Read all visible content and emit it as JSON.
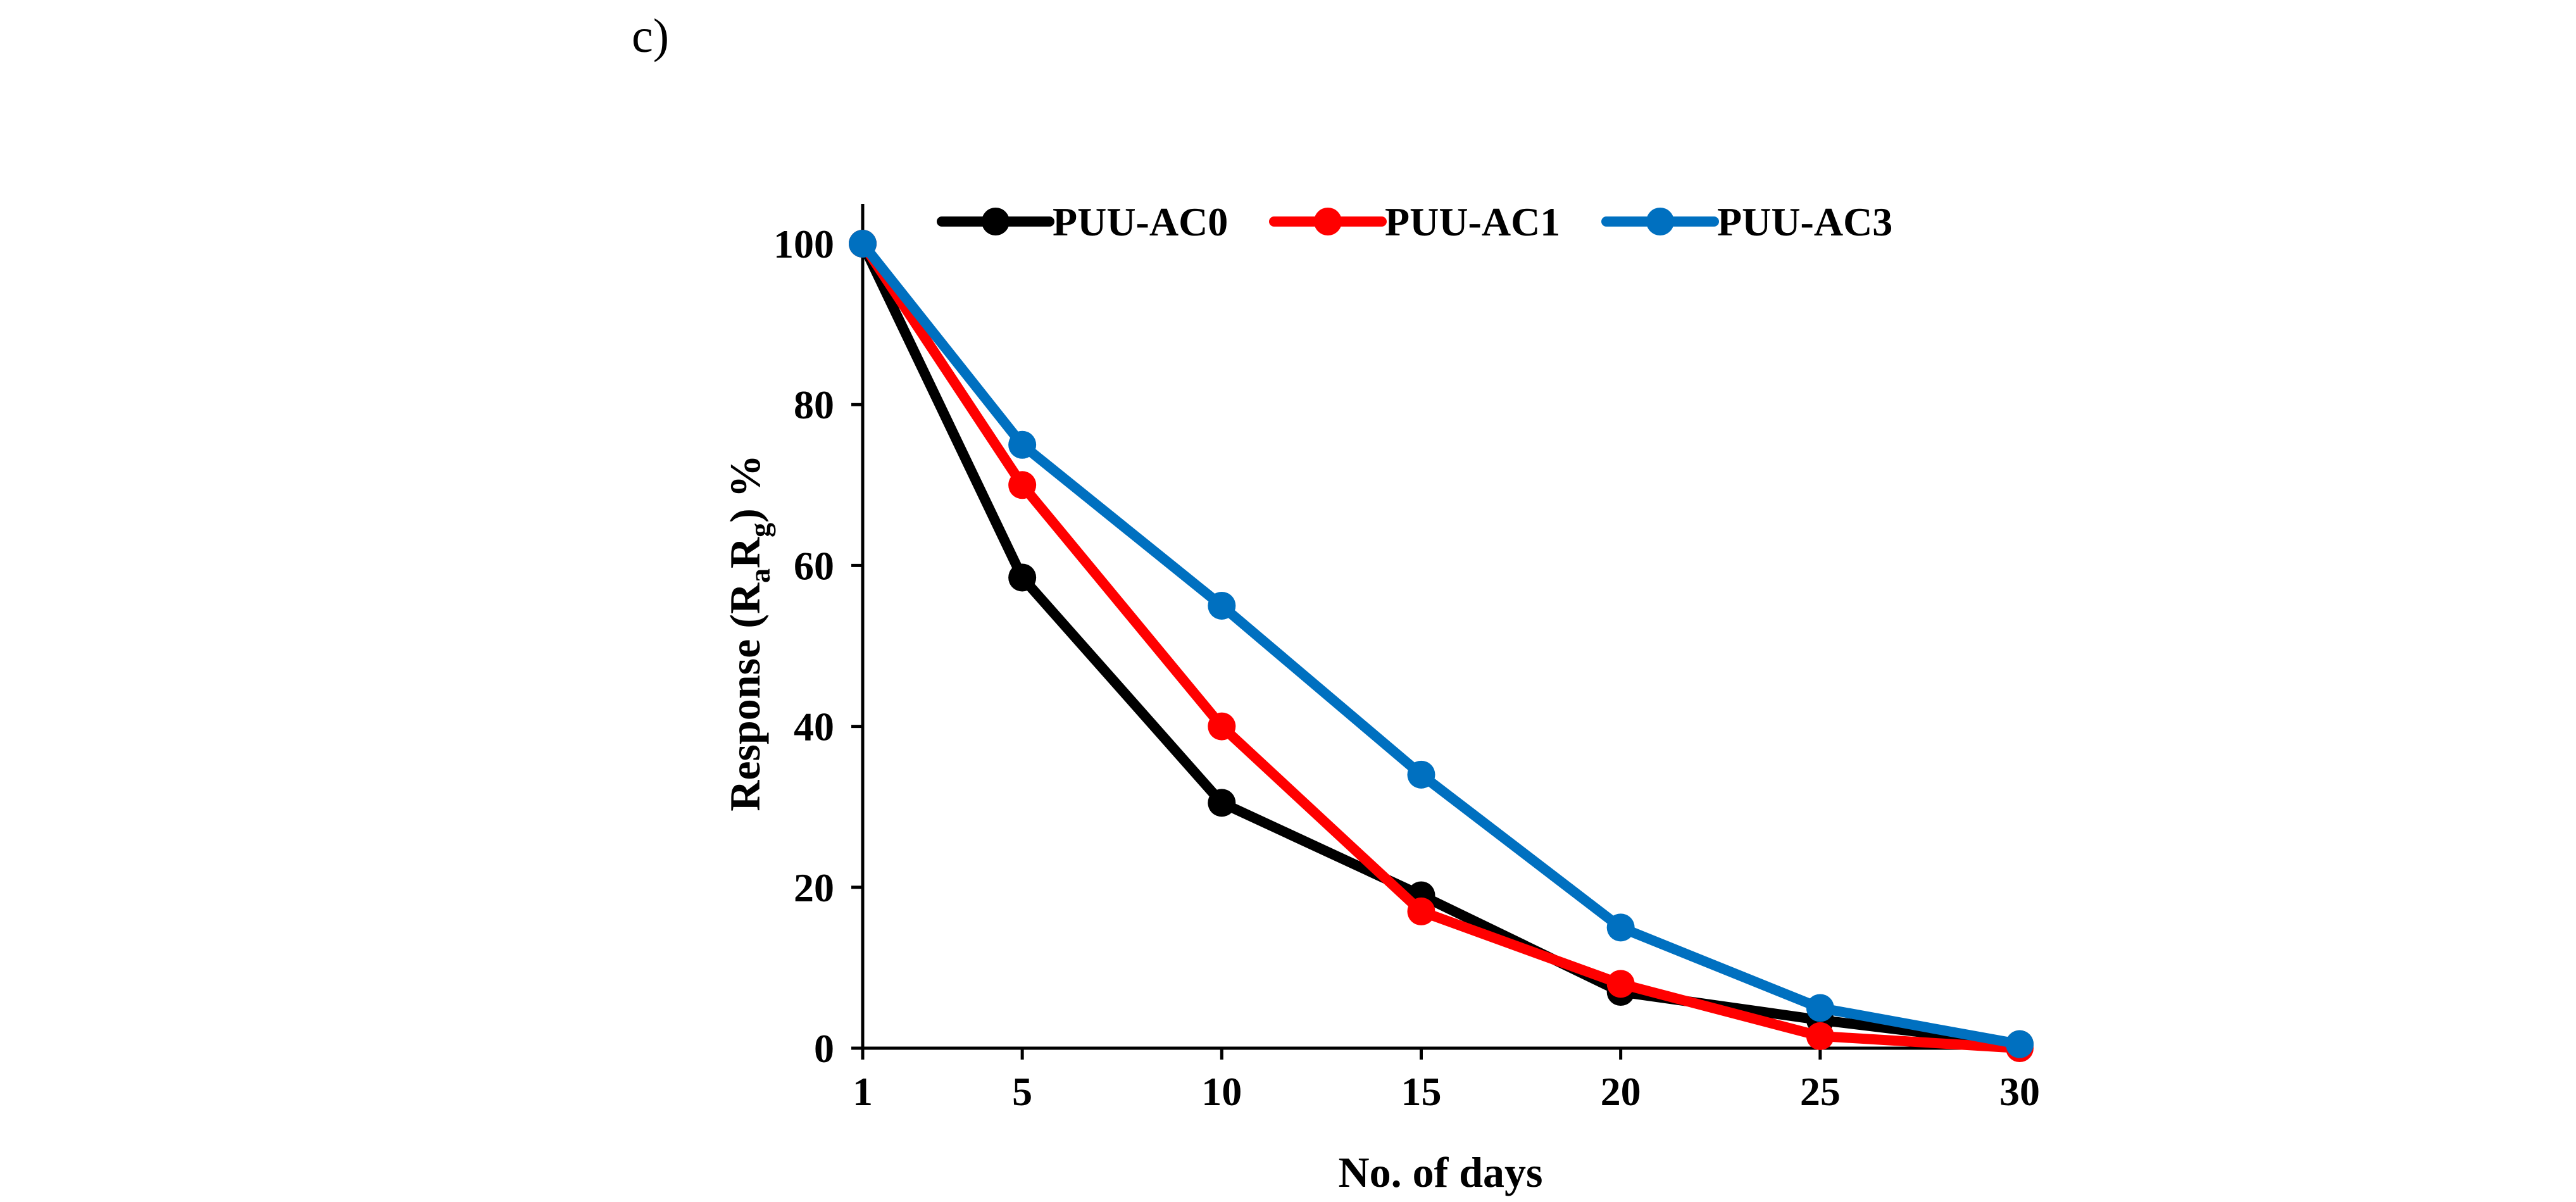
{
  "figure": {
    "panel_label": "c)"
  },
  "chart_data": {
    "type": "line",
    "title": "",
    "x": [
      1,
      5,
      10,
      15,
      20,
      25,
      30
    ],
    "x_tick_labels": [
      "1",
      "5",
      "10",
      "15",
      "20",
      "25",
      "30"
    ],
    "xlabel": "No. of days",
    "ylabel_parts": {
      "prefix": "Response (R",
      "sub1": "a",
      "middle": "R",
      "sub2": "g",
      "suffix": ") %"
    },
    "ylim": [
      0,
      100
    ],
    "y_ticks": [
      0,
      20,
      40,
      60,
      80,
      100
    ],
    "y_tick_labels": [
      "0",
      "20",
      "40",
      "60",
      "80",
      "100"
    ],
    "grid": false,
    "legend_position": "top",
    "series": [
      {
        "name": "PUU-AC0",
        "color": "#000000",
        "values": [
          100,
          58.5,
          30.5,
          19,
          7,
          3.5,
          0.5
        ]
      },
      {
        "name": "PUU-AC1",
        "color": "#ff0000",
        "values": [
          100,
          70,
          40,
          17,
          8,
          1.5,
          0
        ]
      },
      {
        "name": "PUU-AC3",
        "color": "#0070c0",
        "values": [
          100,
          75,
          55,
          34,
          15,
          5,
          0.5
        ]
      }
    ]
  }
}
